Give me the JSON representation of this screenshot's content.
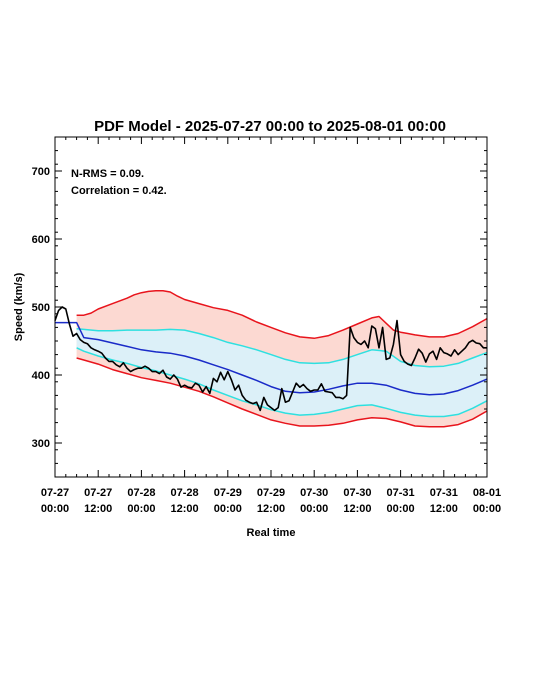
{
  "chart_data": {
    "type": "line",
    "title": "PDF Model - 2025-07-27 00:00 to 2025-08-01 00:00",
    "xlabel": "Real time",
    "ylabel": "Speed (km/s)",
    "xlim": [
      0,
      120
    ],
    "ylim": [
      250,
      750
    ],
    "x_unit": "hours from 2025-07-27 00:00",
    "x_ticks": [
      {
        "x": 0,
        "line1": "07-27",
        "line2": "00:00"
      },
      {
        "x": 12,
        "line1": "07-27",
        "line2": "12:00"
      },
      {
        "x": 24,
        "line1": "07-28",
        "line2": "00:00"
      },
      {
        "x": 36,
        "line1": "07-28",
        "line2": "12:00"
      },
      {
        "x": 48,
        "line1": "07-29",
        "line2": "00:00"
      },
      {
        "x": 60,
        "line1": "07-29",
        "line2": "12:00"
      },
      {
        "x": 72,
        "line1": "07-30",
        "line2": "00:00"
      },
      {
        "x": 84,
        "line1": "07-30",
        "line2": "12:00"
      },
      {
        "x": 96,
        "line1": "07-31",
        "line2": "00:00"
      },
      {
        "x": 108,
        "line1": "07-31",
        "line2": "12:00"
      },
      {
        "x": 120,
        "line1": "08-01",
        "line2": "00:00"
      }
    ],
    "y_ticks": [
      300,
      400,
      500,
      600,
      700
    ],
    "annotations": [
      "N-RMS = 0.09.",
      "Correlation = 0.42."
    ],
    "colors": {
      "outer_band_fill": "#fcd9d2",
      "inner_band_fill": "#dcf0f8",
      "outer_line": "#e8141c",
      "inner_line": "#2ee0e0",
      "median_line": "#1a2bc8",
      "observed_line": "#000000"
    },
    "series": [
      {
        "role": "upper-outer",
        "color": "#e8141c",
        "x": [
          6,
          8,
          10,
          12,
          16,
          20,
          22,
          24,
          26,
          28,
          30,
          32,
          34,
          36,
          40,
          44,
          48,
          52,
          56,
          60,
          64,
          68,
          72,
          76,
          80,
          84,
          88,
          90,
          92,
          94,
          96,
          98,
          100,
          104,
          108,
          112,
          116,
          120
        ],
        "y": [
          488,
          488,
          491,
          497,
          505,
          513,
          518,
          521,
          523,
          524,
          524,
          522,
          516,
          511,
          505,
          499,
          495,
          488,
          478,
          470,
          462,
          456,
          454,
          458,
          466,
          475,
          484,
          486,
          476,
          466,
          463,
          461,
          459,
          456,
          456,
          461,
          471,
          483
        ]
      },
      {
        "role": "upper-inner",
        "color": "#2ee0e0",
        "x": [
          6,
          8,
          12,
          16,
          20,
          24,
          28,
          32,
          36,
          40,
          44,
          48,
          52,
          56,
          60,
          64,
          68,
          72,
          76,
          80,
          84,
          88,
          92,
          96,
          100,
          104,
          108,
          112,
          116,
          120
        ],
        "y": [
          468,
          467,
          465,
          465,
          466,
          466,
          466,
          467,
          466,
          461,
          455,
          448,
          443,
          437,
          430,
          423,
          418,
          417,
          418,
          423,
          430,
          437,
          435,
          420,
          414,
          412,
          413,
          417,
          425,
          433
        ]
      },
      {
        "role": "median",
        "color": "#1a2bc8",
        "x": [
          0,
          6,
          8,
          12,
          16,
          20,
          24,
          28,
          32,
          36,
          40,
          44,
          48,
          52,
          56,
          60,
          64,
          68,
          72,
          76,
          80,
          84,
          88,
          92,
          96,
          100,
          104,
          108,
          112,
          116,
          120
        ],
        "y": [
          477,
          477,
          455,
          452,
          447,
          442,
          437,
          434,
          432,
          428,
          422,
          415,
          408,
          400,
          392,
          383,
          376,
          374,
          375,
          379,
          384,
          388,
          388,
          385,
          378,
          373,
          371,
          372,
          377,
          385,
          394
        ]
      },
      {
        "role": "lower-inner",
        "color": "#2ee0e0",
        "x": [
          6,
          8,
          12,
          16,
          20,
          24,
          28,
          32,
          36,
          40,
          44,
          48,
          52,
          56,
          60,
          64,
          68,
          72,
          76,
          80,
          84,
          88,
          92,
          96,
          100,
          104,
          108,
          112,
          116,
          120
        ],
        "y": [
          440,
          435,
          428,
          422,
          417,
          411,
          406,
          400,
          394,
          387,
          378,
          370,
          362,
          356,
          349,
          344,
          341,
          342,
          345,
          350,
          355,
          356,
          351,
          345,
          341,
          339,
          339,
          342,
          351,
          362
        ]
      },
      {
        "role": "lower-outer",
        "color": "#e8141c",
        "x": [
          6,
          8,
          12,
          16,
          20,
          24,
          28,
          32,
          36,
          40,
          44,
          48,
          52,
          56,
          60,
          64,
          68,
          72,
          76,
          80,
          84,
          88,
          92,
          96,
          100,
          104,
          108,
          112,
          116,
          120
        ],
        "y": [
          425,
          422,
          416,
          408,
          402,
          396,
          392,
          388,
          382,
          376,
          368,
          359,
          350,
          342,
          334,
          329,
          325,
          325,
          326,
          329,
          334,
          337,
          336,
          331,
          325,
          324,
          324,
          327,
          335,
          347
        ]
      },
      {
        "role": "observed",
        "color": "#000000",
        "x": [
          0,
          1,
          2,
          3,
          4,
          5,
          6,
          7,
          8,
          9,
          10,
          11,
          12,
          13,
          14,
          15,
          16,
          17,
          18,
          19,
          20,
          21,
          22,
          23,
          24,
          25,
          26,
          27,
          28,
          29,
          30,
          31,
          32,
          33,
          34,
          35,
          36,
          37,
          38,
          39,
          40,
          41,
          42,
          43,
          44,
          45,
          46,
          47,
          48,
          49,
          50,
          51,
          52,
          53,
          54,
          55,
          56,
          57,
          58,
          59,
          60,
          61,
          62,
          63,
          64,
          65,
          66,
          67,
          68,
          69,
          70,
          71,
          72,
          73,
          74,
          75,
          76,
          77,
          78,
          79,
          80,
          81,
          82,
          83,
          84,
          85,
          86,
          87,
          88,
          89,
          90,
          91,
          92,
          93,
          94,
          95,
          96,
          97,
          98,
          99,
          100,
          101,
          102,
          103,
          104,
          105,
          106,
          107,
          108,
          109,
          110,
          111,
          112,
          113,
          114,
          115,
          116,
          117,
          118,
          119,
          120
        ],
        "y": [
          480,
          495,
          500,
          497,
          475,
          457,
          461,
          452,
          448,
          446,
          440,
          437,
          435,
          432,
          425,
          420,
          420,
          415,
          412,
          418,
          410,
          405,
          408,
          410,
          410,
          413,
          410,
          405,
          405,
          402,
          407,
          397,
          394,
          400,
          394,
          382,
          385,
          382,
          381,
          388,
          385,
          375,
          383,
          373,
          395,
          390,
          404,
          393,
          405,
          393,
          378,
          385,
          370,
          363,
          360,
          358,
          360,
          348,
          367,
          356,
          352,
          348,
          352,
          380,
          360,
          362,
          375,
          388,
          382,
          386,
          380,
          376,
          378,
          378,
          387,
          376,
          375,
          374,
          367,
          367,
          365,
          370,
          470,
          455,
          448,
          445,
          450,
          440,
          472,
          468,
          440,
          470,
          423,
          425,
          445,
          480,
          430,
          420,
          416,
          414,
          425,
          438,
          432,
          419,
          431,
          435,
          423,
          440,
          433,
          431,
          428,
          437,
          430,
          435,
          440,
          448,
          451,
          447,
          446,
          440,
          440
        ]
      }
    ]
  }
}
